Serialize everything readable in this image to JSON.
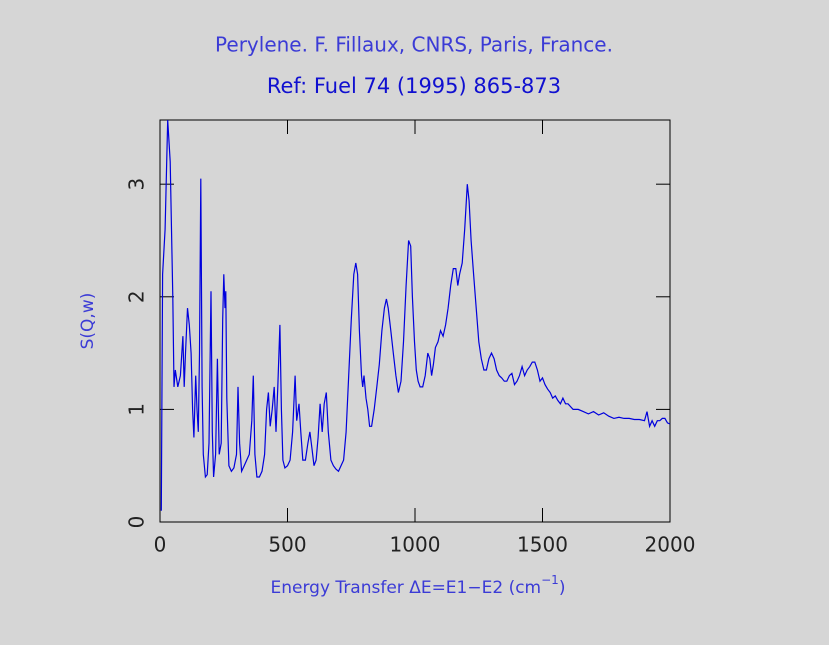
{
  "chart_data": {
    "type": "line",
    "title": "Perylene. F. Fillaux, CNRS, Paris, France.",
    "subtitle": "Ref: Fuel 74 (1995) 865-873",
    "xlabel": [
      "Energy Transfer ΔE=E1−E2 (cm",
      "−1",
      ")"
    ],
    "ylabel": "S(Q,w)",
    "color": "#0000dd",
    "xlim": [
      0,
      2000
    ],
    "xticks": [
      0,
      500,
      1000,
      1500,
      2000
    ],
    "ylim": [
      0,
      3.57
    ],
    "yticks": [
      0,
      1,
      2,
      3
    ],
    "x": [
      5,
      10,
      20,
      30,
      40,
      50,
      55,
      60,
      70,
      80,
      90,
      95,
      100,
      108,
      115,
      122,
      128,
      133,
      140,
      145,
      150,
      155,
      160,
      165,
      170,
      178,
      185,
      192,
      200,
      205,
      210,
      218,
      225,
      232,
      240,
      246,
      250,
      255,
      258,
      262,
      270,
      280,
      290,
      300,
      306,
      312,
      320,
      330,
      340,
      350,
      360,
      366,
      372,
      380,
      390,
      400,
      410,
      418,
      425,
      432,
      440,
      448,
      455,
      462,
      470,
      476,
      482,
      490,
      500,
      510,
      520,
      530,
      536,
      545,
      552,
      560,
      570,
      580,
      588,
      596,
      604,
      612,
      620,
      628,
      636,
      644,
      652,
      660,
      670,
      680,
      690,
      700,
      710,
      720,
      730,
      740,
      750,
      760,
      768,
      775,
      782,
      790,
      795,
      800,
      808,
      815,
      822,
      830,
      840,
      850,
      860,
      870,
      880,
      888,
      895,
      905,
      915,
      925,
      935,
      945,
      955,
      965,
      975,
      983,
      990,
      998,
      1005,
      1012,
      1020,
      1030,
      1040,
      1050,
      1058,
      1065,
      1072,
      1080,
      1090,
      1100,
      1110,
      1120,
      1130,
      1140,
      1150,
      1160,
      1168,
      1175,
      1185,
      1195,
      1205,
      1212,
      1220,
      1230,
      1240,
      1250,
      1260,
      1270,
      1280,
      1290,
      1300,
      1310,
      1320,
      1330,
      1340,
      1350,
      1360,
      1370,
      1380,
      1390,
      1400,
      1410,
      1420,
      1430,
      1440,
      1450,
      1460,
      1470,
      1480,
      1490,
      1500,
      1510,
      1520,
      1530,
      1540,
      1550,
      1560,
      1570,
      1580,
      1590,
      1600,
      1620,
      1640,
      1660,
      1680,
      1700,
      1720,
      1740,
      1760,
      1780,
      1800,
      1820,
      1840,
      1860,
      1880,
      1900,
      1910,
      1920,
      1930,
      1940,
      1950,
      1960,
      1970,
      1980,
      1990,
      2000
    ],
    "values": [
      0.1,
      2.2,
      2.6,
      3.57,
      3.2,
      2.0,
      1.2,
      1.35,
      1.2,
      1.3,
      1.65,
      1.2,
      1.5,
      1.9,
      1.75,
      1.5,
      1.0,
      0.75,
      1.3,
      1.0,
      0.8,
      1.5,
      3.05,
      1.2,
      0.6,
      0.4,
      0.42,
      0.7,
      2.05,
      0.8,
      0.4,
      0.6,
      1.45,
      0.6,
      0.7,
      1.8,
      2.2,
      1.9,
      2.05,
      1.1,
      0.5,
      0.45,
      0.48,
      0.6,
      1.2,
      0.7,
      0.45,
      0.5,
      0.55,
      0.6,
      0.9,
      1.3,
      0.6,
      0.4,
      0.4,
      0.45,
      0.6,
      1.0,
      1.15,
      0.85,
      1.0,
      1.2,
      0.8,
      1.2,
      1.75,
      1.0,
      0.55,
      0.48,
      0.5,
      0.55,
      0.8,
      1.3,
      0.9,
      1.05,
      0.8,
      0.55,
      0.55,
      0.7,
      0.8,
      0.65,
      0.5,
      0.55,
      0.75,
      1.05,
      0.8,
      1.05,
      1.15,
      0.8,
      0.55,
      0.5,
      0.47,
      0.45,
      0.5,
      0.55,
      0.8,
      1.3,
      1.8,
      2.2,
      2.3,
      2.2,
      1.7,
      1.3,
      1.2,
      1.3,
      1.1,
      1.0,
      0.85,
      0.85,
      1.0,
      1.2,
      1.4,
      1.7,
      1.9,
      1.98,
      1.9,
      1.7,
      1.5,
      1.3,
      1.15,
      1.25,
      1.6,
      2.1,
      2.5,
      2.45,
      2.0,
      1.6,
      1.35,
      1.25,
      1.2,
      1.2,
      1.3,
      1.5,
      1.45,
      1.3,
      1.4,
      1.55,
      1.6,
      1.7,
      1.65,
      1.75,
      1.9,
      2.1,
      2.25,
      2.25,
      2.1,
      2.2,
      2.3,
      2.6,
      3.0,
      2.85,
      2.5,
      2.2,
      1.9,
      1.6,
      1.45,
      1.35,
      1.35,
      1.45,
      1.5,
      1.45,
      1.35,
      1.3,
      1.28,
      1.25,
      1.25,
      1.3,
      1.32,
      1.22,
      1.25,
      1.3,
      1.38,
      1.3,
      1.35,
      1.38,
      1.42,
      1.42,
      1.35,
      1.25,
      1.28,
      1.22,
      1.18,
      1.15,
      1.1,
      1.12,
      1.08,
      1.05,
      1.1,
      1.05,
      1.05,
      1.0,
      1.0,
      0.98,
      0.96,
      0.98,
      0.95,
      0.97,
      0.94,
      0.92,
      0.93,
      0.92,
      0.92,
      0.91,
      0.91,
      0.9,
      0.98,
      0.85,
      0.9,
      0.85,
      0.9,
      0.9,
      0.92,
      0.92,
      0.88,
      0.87
    ]
  }
}
